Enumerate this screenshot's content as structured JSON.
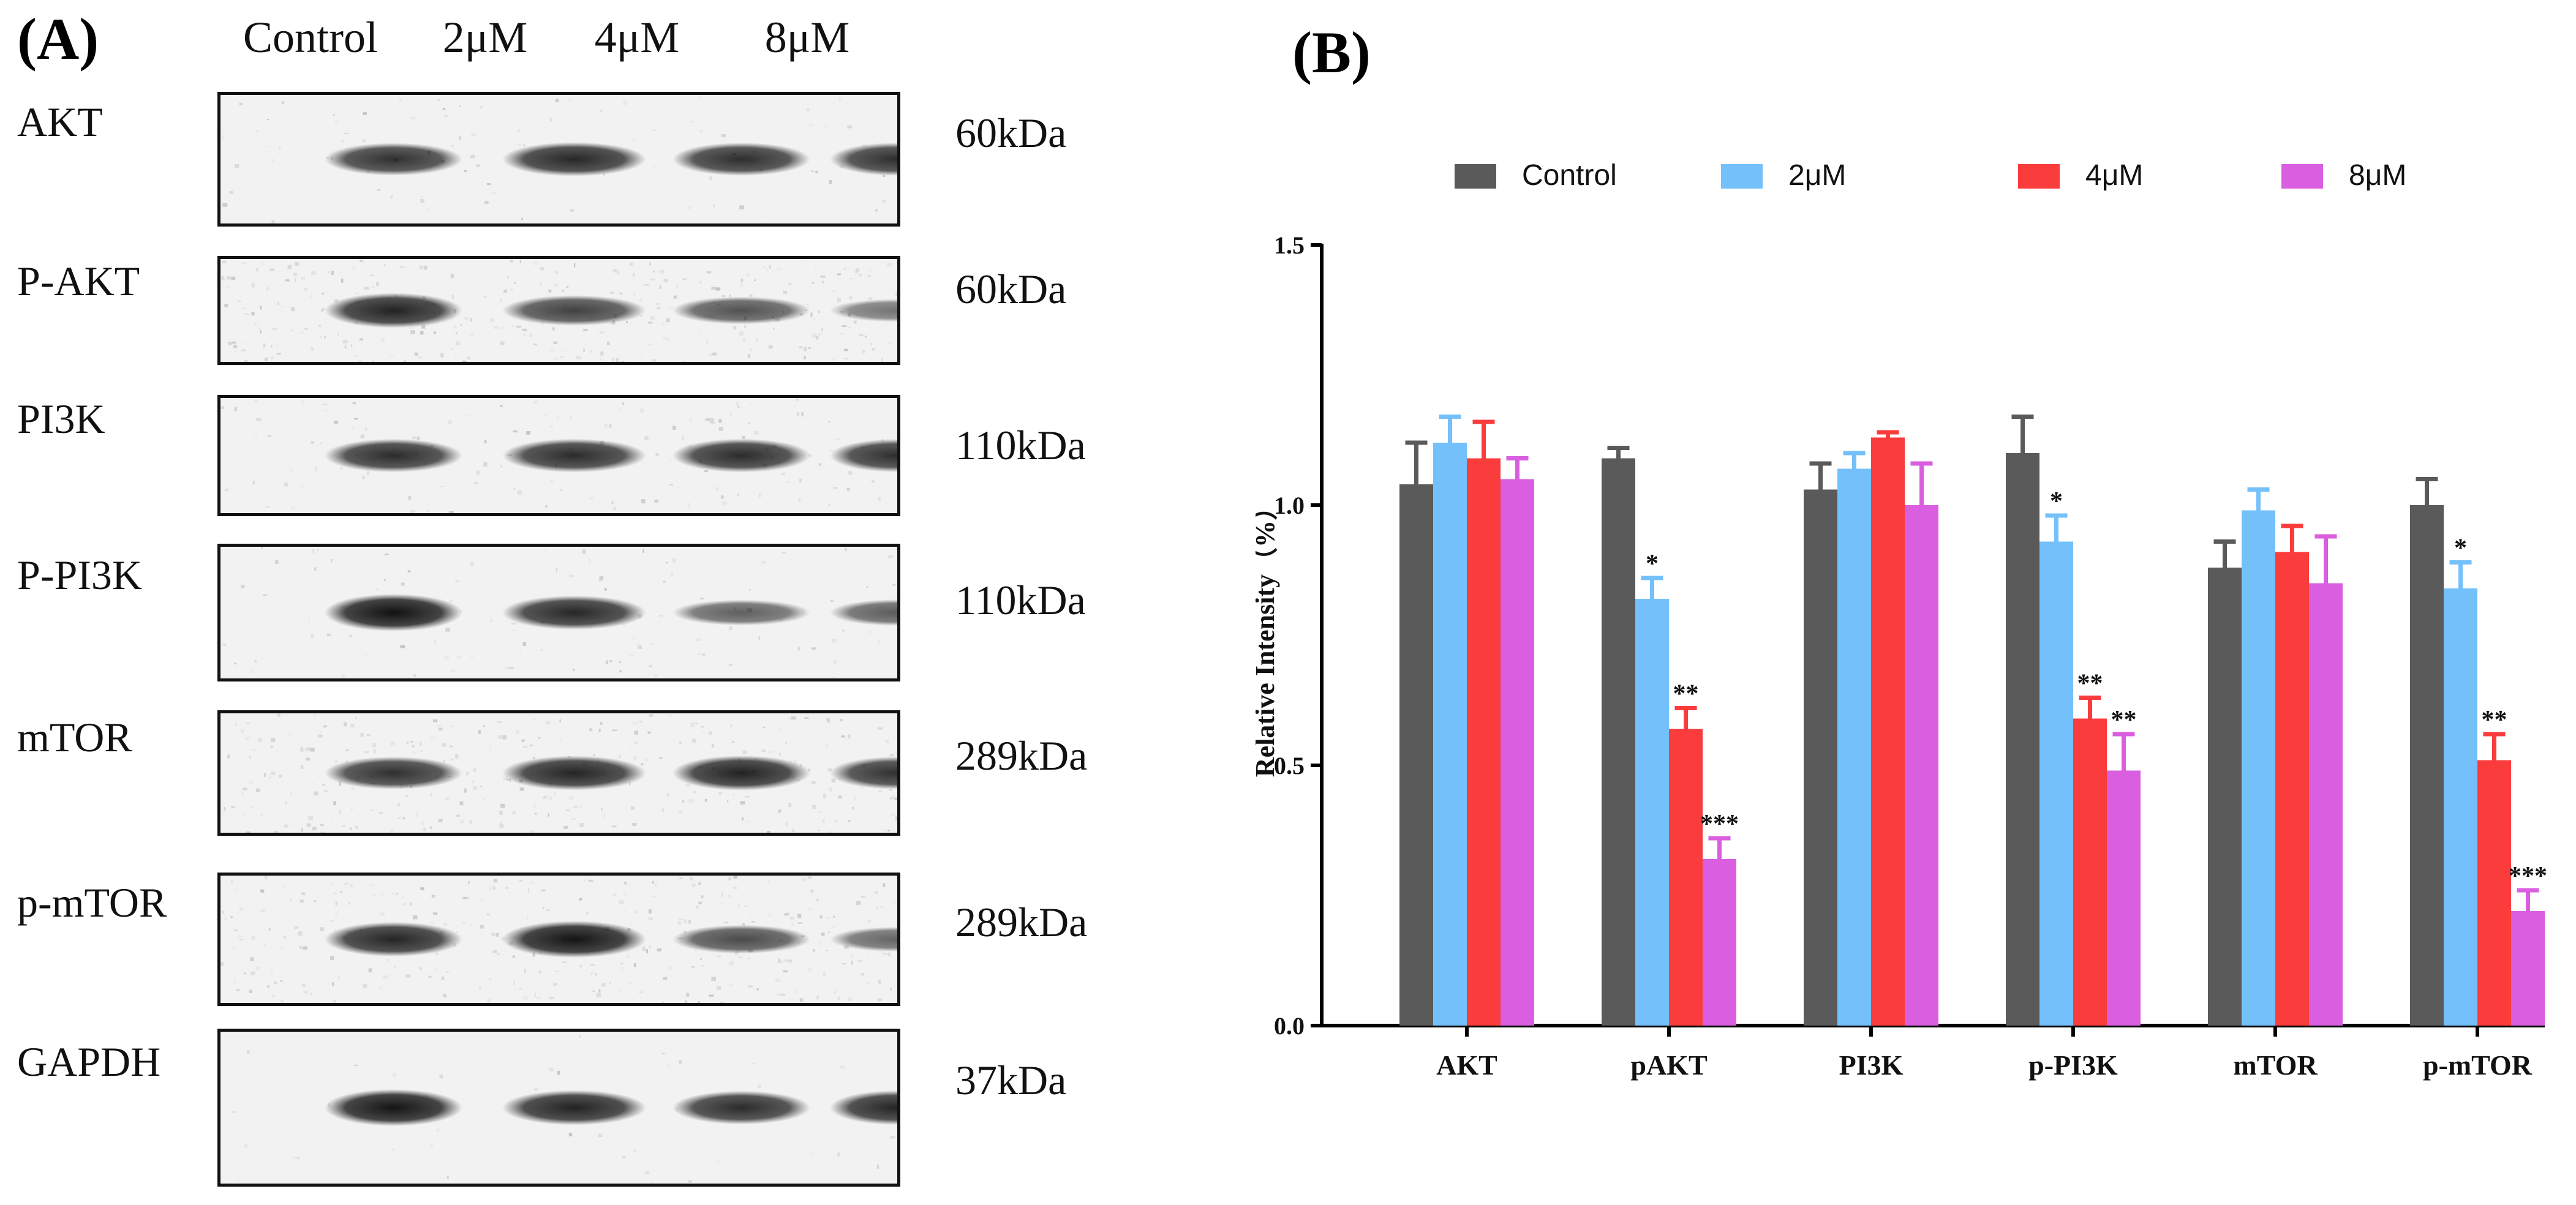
{
  "panel_a": {
    "label": "(A)",
    "columns": [
      "Control",
      "2μM",
      "4μM",
      "8μM"
    ],
    "rows": [
      {
        "name": "AKT",
        "kda": "60kDa",
        "intensity": [
          0.72,
          0.78,
          0.74,
          0.74
        ],
        "noise": 0.1
      },
      {
        "name": "P-AKT",
        "kda": "60kDa",
        "intensity": [
          0.82,
          0.62,
          0.5,
          0.3
        ],
        "noise": 0.35
      },
      {
        "name": "PI3K",
        "kda": "110kDa",
        "intensity": [
          0.75,
          0.76,
          0.76,
          0.74
        ],
        "noise": 0.15
      },
      {
        "name": "P-PI3K",
        "kda": "110kDa",
        "intensity": [
          0.92,
          0.78,
          0.42,
          0.45
        ],
        "noise": 0.12
      },
      {
        "name": "mTOR",
        "kda": "289kDa",
        "intensity": [
          0.72,
          0.8,
          0.82,
          0.72
        ],
        "noise": 0.35
      },
      {
        "name": "p-mTOR",
        "kda": "289kDa",
        "intensity": [
          0.8,
          0.9,
          0.55,
          0.38
        ],
        "noise": 0.35
      },
      {
        "name": "GAPDH",
        "kda": "37kDa",
        "intensity": [
          0.9,
          0.82,
          0.76,
          0.8
        ],
        "noise": 0.05
      }
    ]
  },
  "panel_b": {
    "label": "(B)"
  },
  "chart_data": {
    "type": "bar",
    "title": "",
    "xlabel": "",
    "ylabel": "Relative Intensity（%）",
    "ylim": [
      0,
      1.5
    ],
    "yticks": [
      "0.0",
      "0.5",
      "1.0",
      "1.5"
    ],
    "categories": [
      "AKT",
      "pAKT",
      "PI3K",
      "p-PI3K",
      "mTOR",
      "p-mTOR"
    ],
    "legend_position": "top",
    "series": [
      {
        "name": "Control",
        "color": "#5a5a5a",
        "values": [
          1.04,
          1.09,
          1.03,
          1.1,
          0.88,
          1.0
        ],
        "errors": [
          0.08,
          0.02,
          0.05,
          0.07,
          0.05,
          0.05
        ],
        "significance": [
          "",
          "",
          "",
          "",
          "",
          ""
        ]
      },
      {
        "name": "2μM",
        "color": "#74c0fa",
        "values": [
          1.12,
          0.82,
          1.07,
          0.93,
          0.99,
          0.84
        ],
        "errors": [
          0.05,
          0.04,
          0.03,
          0.05,
          0.04,
          0.05
        ],
        "significance": [
          "",
          "*",
          "",
          "*",
          "",
          "*"
        ]
      },
      {
        "name": "4μM",
        "color": "#fa3c3c",
        "values": [
          1.09,
          0.57,
          1.13,
          0.59,
          0.91,
          0.51
        ],
        "errors": [
          0.07,
          0.04,
          0.01,
          0.04,
          0.05,
          0.05
        ],
        "significance": [
          "",
          "**",
          "",
          "**",
          "",
          "**"
        ]
      },
      {
        "name": "8μM",
        "color": "#d95ee0",
        "values": [
          1.05,
          0.32,
          1.0,
          0.49,
          0.85,
          0.22
        ],
        "errors": [
          0.04,
          0.04,
          0.08,
          0.07,
          0.09,
          0.04
        ],
        "significance": [
          "",
          "***",
          "",
          "**",
          "",
          "***"
        ]
      }
    ]
  }
}
